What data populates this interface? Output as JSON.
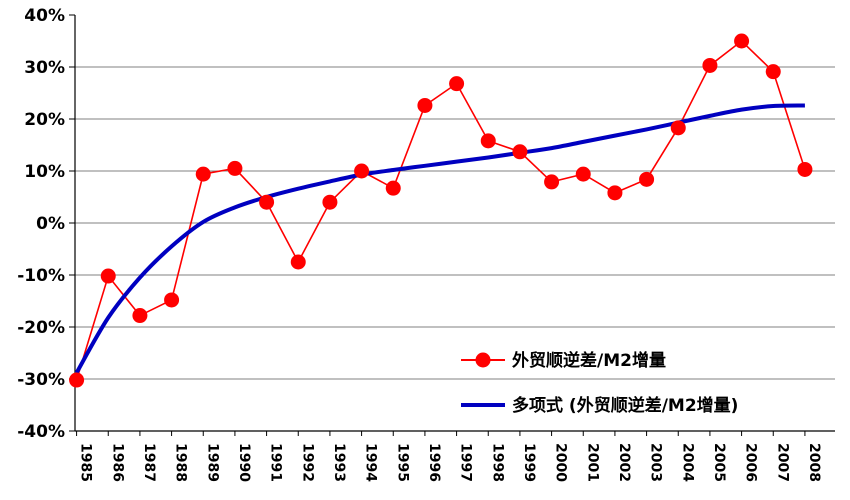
{
  "chart_data": {
    "type": "line",
    "title": "",
    "xlabel": "",
    "ylabel": "",
    "x": [
      "1985",
      "1986",
      "1987",
      "1988",
      "1989",
      "1990",
      "1991",
      "1992",
      "1993",
      "1994",
      "1995",
      "1996",
      "1997",
      "1998",
      "1999",
      "2000",
      "2001",
      "2002",
      "2003",
      "2004",
      "2005",
      "2006",
      "2007",
      "2008"
    ],
    "ylim": [
      -40,
      40
    ],
    "yticks": [
      "40%",
      "30%",
      "20%",
      "10%",
      "0%",
      "-10%",
      "-20%",
      "-30%",
      "-40%"
    ],
    "grid": "horizontal",
    "legend_position": "bottom-right",
    "series": [
      {
        "name": "外贸顺逆差/M2增量",
        "color": "#ff0000",
        "marker": "circle",
        "values": [
          -30.2,
          -10.2,
          -17.8,
          -14.8,
          9.4,
          10.5,
          4.0,
          -7.5,
          4.0,
          10.0,
          6.7,
          22.6,
          26.8,
          15.8,
          13.7,
          7.9,
          9.4,
          5.8,
          8.4,
          18.3,
          30.3,
          35.0,
          29.1,
          10.3
        ]
      },
      {
        "name": "多项式 (外贸顺逆差/M2增量)",
        "color": "#0000c0",
        "marker": "none",
        "smooth": true,
        "values": [
          -28.8,
          -18.2,
          -10.5,
          -4.5,
          0.2,
          3.0,
          5.0,
          6.6,
          8.0,
          9.3,
          10.2,
          11.0,
          11.8,
          12.6,
          13.5,
          14.4,
          15.6,
          16.8,
          18.0,
          19.3,
          20.6,
          21.8,
          22.5,
          22.6
        ]
      }
    ]
  }
}
